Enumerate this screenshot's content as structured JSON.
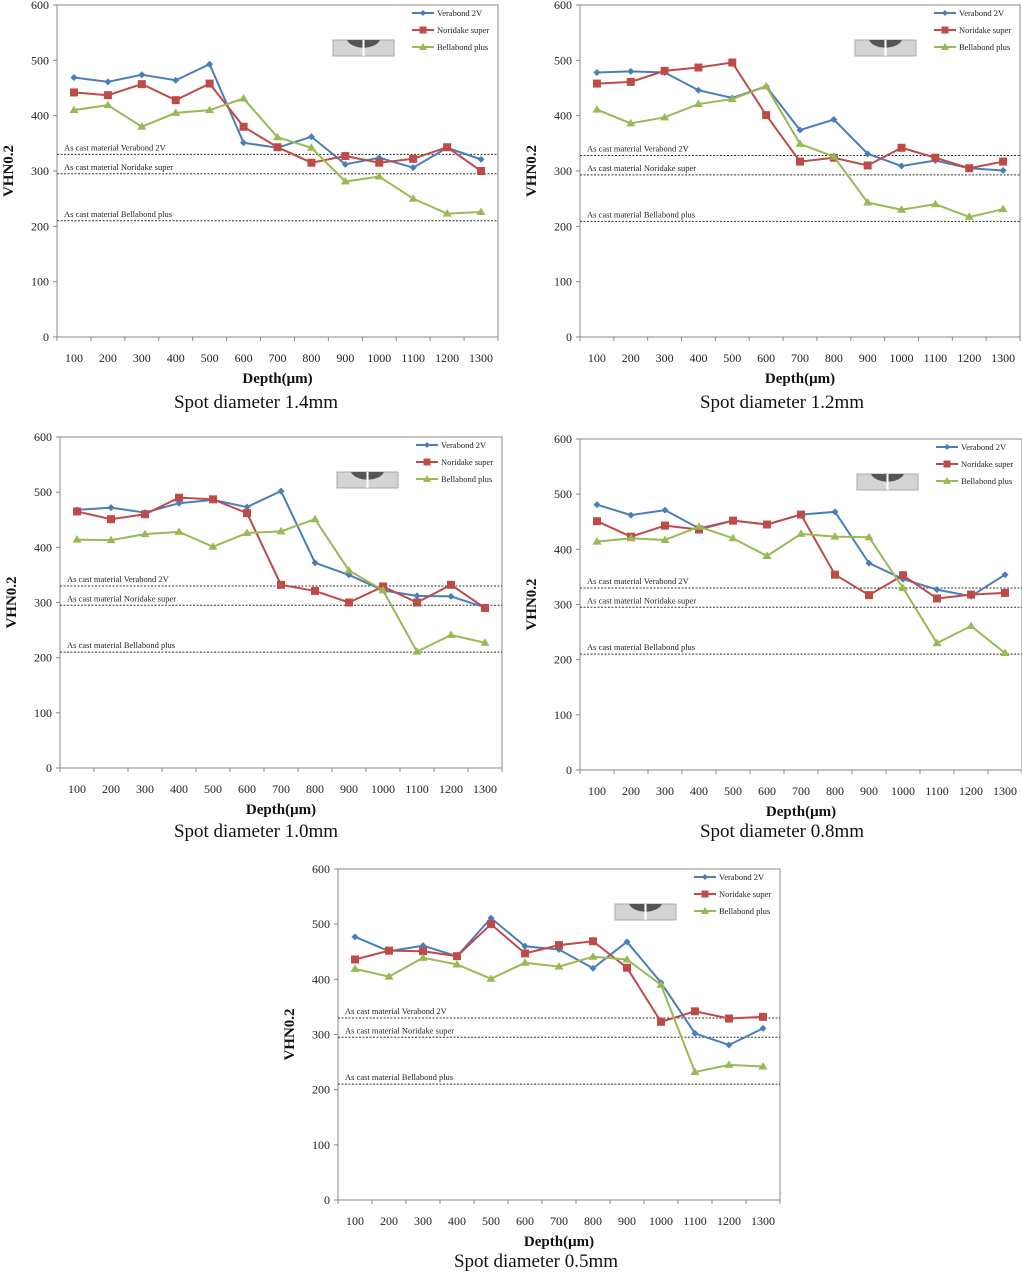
{
  "common": {
    "xlabel": "Depth(μm)",
    "ylabel": "VHN0.2",
    "y_ticks": [
      0,
      100,
      200,
      300,
      400,
      500,
      600
    ],
    "x_ticks": [
      100,
      200,
      300,
      400,
      500,
      600,
      700,
      800,
      900,
      1000,
      1100,
      1200,
      1300
    ],
    "legend": [
      "Verabond 2V",
      "Noridake super",
      "Bellabond plus"
    ],
    "colors": {
      "Verabond 2V": "#4a7ebb",
      "Noridake super": "#be4b48",
      "Bellabond plus": "#98b954"
    },
    "reference_labels": [
      "As cast material Verabond 2V",
      "As cast material Noridake super",
      "As cast material Bellabond plus"
    ],
    "inset_icon": "indentation-spot-diagram-icon"
  },
  "chart_data": [
    {
      "type": "line",
      "title": "Spot diameter 1.4mm",
      "xlabel": "Depth(μm)",
      "ylabel": "VHN0.2",
      "ylim": [
        0,
        600
      ],
      "grid": false,
      "legend_position": "top-right",
      "x": [
        100,
        200,
        300,
        400,
        500,
        600,
        700,
        800,
        900,
        1000,
        1100,
        1200,
        1300
      ],
      "series": [
        {
          "name": "Verabond 2V",
          "marker": "diamond",
          "values": [
            469,
            461,
            474,
            464,
            493,
            351,
            342,
            362,
            312,
            324,
            306,
            342,
            321
          ]
        },
        {
          "name": "Noridake super",
          "marker": "square",
          "values": [
            442,
            437,
            457,
            428,
            458,
            380,
            343,
            315,
            327,
            315,
            322,
            343,
            300
          ]
        },
        {
          "name": "Bellabond plus",
          "marker": "triangle",
          "values": [
            410,
            419,
            380,
            405,
            410,
            431,
            361,
            342,
            281,
            290,
            250,
            223,
            226
          ]
        }
      ],
      "reference_lines": [
        {
          "label": "As cast material Verabond 2V",
          "value": 330
        },
        {
          "label": "As cast material Noridake super",
          "value": 295
        },
        {
          "label": "As cast material Bellabond plus",
          "value": 210
        }
      ]
    },
    {
      "type": "line",
      "title": "Spot diameter 1.2mm",
      "xlabel": "Depth(μm)",
      "ylabel": "VHN0.2",
      "ylim": [
        0,
        600
      ],
      "grid": false,
      "legend_position": "top-right",
      "x": [
        100,
        200,
        300,
        400,
        500,
        600,
        700,
        800,
        900,
        1000,
        1100,
        1200,
        1300
      ],
      "series": [
        {
          "name": "Verabond 2V",
          "marker": "diamond",
          "values": [
            478,
            480,
            478,
            446,
            432,
            453,
            374,
            393,
            331,
            309,
            319,
            305,
            301
          ]
        },
        {
          "name": "Noridake super",
          "marker": "square",
          "values": [
            458,
            461,
            481,
            487,
            496,
            401,
            317,
            324,
            310,
            342,
            324,
            305,
            317
          ]
        },
        {
          "name": "Bellabond plus",
          "marker": "triangle",
          "values": [
            411,
            386,
            397,
            421,
            430,
            453,
            349,
            326,
            243,
            230,
            240,
            217,
            231
          ]
        }
      ],
      "reference_lines": [
        {
          "label": "As cast material Verabond 2V",
          "value": 328
        },
        {
          "label": "As cast material Noridake super",
          "value": 293
        },
        {
          "label": "As cast material Bellabond plus",
          "value": 209
        }
      ]
    },
    {
      "type": "line",
      "title": "Spot diameter 1.0mm",
      "xlabel": "Depth(μm)",
      "ylabel": "VHN0.2",
      "ylim": [
        0,
        600
      ],
      "grid": false,
      "legend_position": "top-right",
      "x": [
        100,
        200,
        300,
        400,
        500,
        600,
        700,
        800,
        900,
        1000,
        1100,
        1200,
        1300
      ],
      "series": [
        {
          "name": "Verabond 2V",
          "marker": "diamond",
          "values": [
            468,
            472,
            463,
            480,
            486,
            473,
            502,
            372,
            350,
            322,
            312,
            311,
            291
          ]
        },
        {
          "name": "Noridake super",
          "marker": "square",
          "values": [
            465,
            451,
            460,
            490,
            487,
            462,
            332,
            321,
            300,
            329,
            300,
            332,
            290
          ]
        },
        {
          "name": "Bellabond plus",
          "marker": "triangle",
          "values": [
            414,
            413,
            424,
            428,
            401,
            426,
            429,
            451,
            358,
            322,
            211,
            241,
            227
          ]
        }
      ],
      "reference_lines": [
        {
          "label": "As cast material Verabond 2V",
          "value": 330
        },
        {
          "label": "As cast material Noridake super",
          "value": 295
        },
        {
          "label": "As cast material Bellabond plus",
          "value": 210
        }
      ]
    },
    {
      "type": "line",
      "title": "Spot diameter 0.8mm",
      "xlabel": "Depth(μm)",
      "ylabel": "VHN0.2",
      "ylim": [
        0,
        600
      ],
      "grid": false,
      "legend_position": "top-right",
      "x": [
        100,
        200,
        300,
        400,
        500,
        600,
        700,
        800,
        900,
        1000,
        1100,
        1200,
        1300
      ],
      "series": [
        {
          "name": "Verabond 2V",
          "marker": "diamond",
          "values": [
            481,
            462,
            471,
            438,
            452,
            445,
            463,
            468,
            375,
            346,
            327,
            315,
            354
          ]
        },
        {
          "name": "Noridake super",
          "marker": "square",
          "values": [
            451,
            423,
            443,
            436,
            452,
            445,
            463,
            354,
            317,
            353,
            311,
            318,
            321
          ]
        },
        {
          "name": "Bellabond plus",
          "marker": "triangle",
          "values": [
            414,
            420,
            417,
            441,
            420,
            388,
            428,
            423,
            422,
            330,
            230,
            261,
            212
          ]
        }
      ],
      "reference_lines": [
        {
          "label": "As cast material Verabond 2V",
          "value": 330
        },
        {
          "label": "As cast material Noridake super",
          "value": 295
        },
        {
          "label": "As cast material Bellabond plus",
          "value": 210
        }
      ]
    },
    {
      "type": "line",
      "title": "Spot diameter 0.5mm",
      "xlabel": "Depth(μm)",
      "ylabel": "VHN0.2",
      "ylim": [
        0,
        600
      ],
      "grid": false,
      "legend_position": "top-right",
      "x": [
        100,
        200,
        300,
        400,
        500,
        600,
        700,
        800,
        900,
        1000,
        1100,
        1200,
        1300
      ],
      "series": [
        {
          "name": "Verabond 2V",
          "marker": "diamond",
          "values": [
            477,
            451,
            461,
            442,
            511,
            460,
            454,
            420,
            468,
            394,
            302,
            281,
            311
          ]
        },
        {
          "name": "Noridake super",
          "marker": "square",
          "values": [
            436,
            452,
            451,
            442,
            500,
            447,
            462,
            469,
            421,
            323,
            342,
            329,
            332
          ]
        },
        {
          "name": "Bellabond plus",
          "marker": "triangle",
          "values": [
            419,
            405,
            439,
            427,
            401,
            430,
            423,
            441,
            436,
            390,
            232,
            245,
            242
          ]
        }
      ],
      "reference_lines": [
        {
          "label": "As cast material Verabond 2V",
          "value": 330
        },
        {
          "label": "As cast material Noridake super",
          "value": 295
        },
        {
          "label": "As cast material Bellabond plus",
          "value": 210
        }
      ]
    }
  ]
}
